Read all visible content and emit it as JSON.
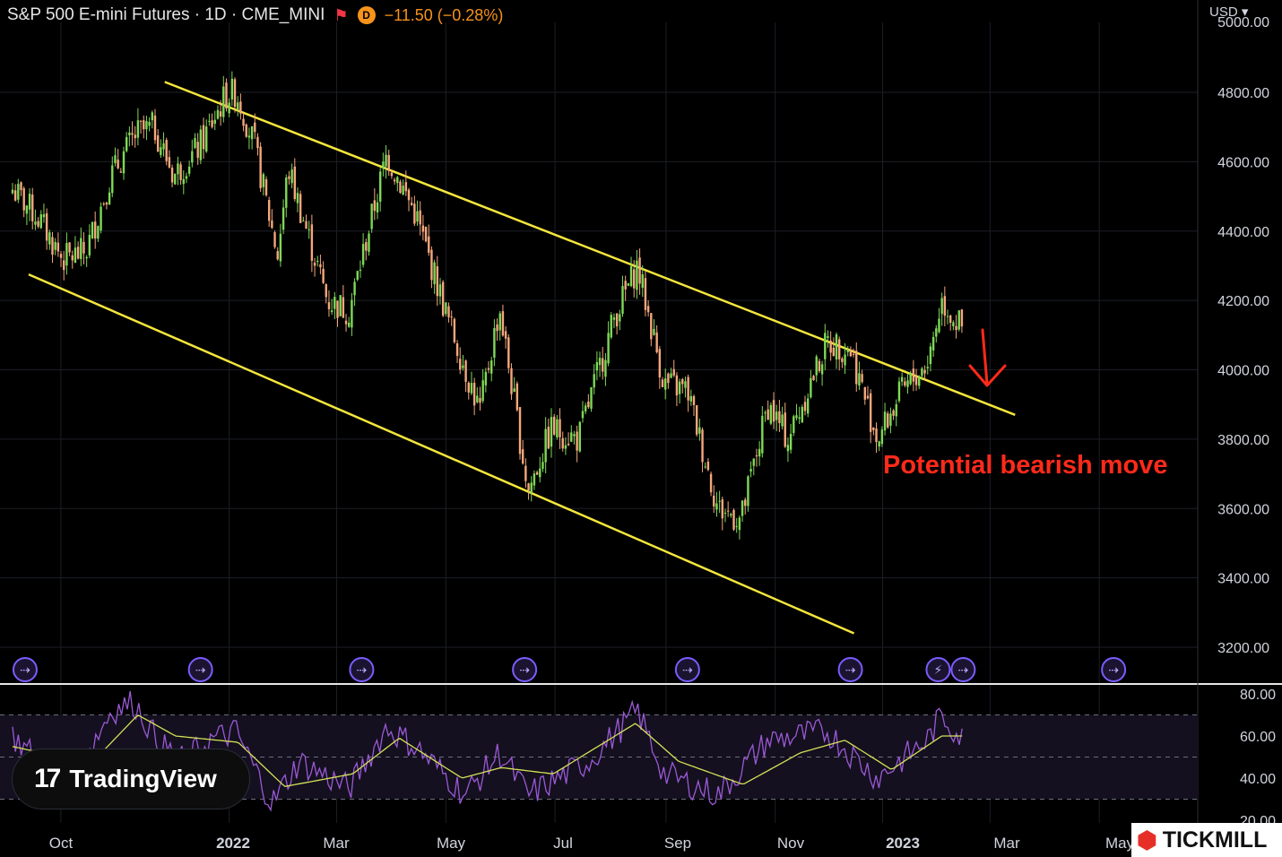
{
  "header": {
    "title": "S&P 500 E-mini Futures · 1D · CME_MINI",
    "flag_icon": "flag-icon",
    "badge_label": "D",
    "change": "−11.50 (−0.28%)",
    "currency": "USD"
  },
  "annotation": "Potential bearish move",
  "branding": {
    "tradingview": "TradingView",
    "tickmill": "TICKMILL"
  },
  "colors": {
    "up": "#7ed957",
    "down": "#f5a77d",
    "trendline": "#f5e63c",
    "rsi": "#9b59d6",
    "rsi_ma": "#d4e157",
    "arrow": "#ff2a1a",
    "event_icon": "#7b5cff"
  },
  "chart_data": {
    "type": "candlestick",
    "title": "S&P 500 E-mini Futures · 1D · CME_MINI",
    "price_axis": {
      "ticks": [
        3200,
        3400,
        3600,
        3800,
        4000,
        4200,
        4400,
        4600,
        4800
      ],
      "tick_labels": [
        "3200.00",
        "3400.00",
        "3600.00",
        "3800.00",
        "4000.00",
        "4200.00",
        "4400.00",
        "4600.00",
        "4800.00"
      ],
      "range": [
        3150,
        5000
      ]
    },
    "time_axis": {
      "labels": [
        "Oct",
        "2022",
        "Mar",
        "May",
        "Jul",
        "Sep",
        "Nov",
        "2023",
        "Mar",
        "May"
      ],
      "bold": [
        "2022",
        "2023"
      ]
    },
    "price_path": [
      {
        "date": "2021-09-01",
        "close": 4520
      },
      {
        "date": "2021-09-15",
        "close": 4440
      },
      {
        "date": "2021-09-29",
        "close": 4320
      },
      {
        "date": "2021-10-12",
        "close": 4340
      },
      {
        "date": "2021-10-26",
        "close": 4560
      },
      {
        "date": "2021-11-09",
        "close": 4680
      },
      {
        "date": "2021-11-19",
        "close": 4700
      },
      {
        "date": "2021-11-30",
        "close": 4560
      },
      {
        "date": "2021-12-14",
        "close": 4640
      },
      {
        "date": "2021-12-29",
        "close": 4790
      },
      {
        "date": "2022-01-04",
        "close": 4800
      },
      {
        "date": "2022-01-14",
        "close": 4650
      },
      {
        "date": "2022-01-27",
        "close": 4330
      },
      {
        "date": "2022-02-02",
        "close": 4580
      },
      {
        "date": "2022-02-24",
        "close": 4200
      },
      {
        "date": "2022-03-08",
        "close": 4170
      },
      {
        "date": "2022-03-29",
        "close": 4620
      },
      {
        "date": "2022-04-14",
        "close": 4450
      },
      {
        "date": "2022-05-02",
        "close": 4150
      },
      {
        "date": "2022-05-20",
        "close": 3880
      },
      {
        "date": "2022-05-31",
        "close": 4180
      },
      {
        "date": "2022-06-16",
        "close": 3650
      },
      {
        "date": "2022-06-29",
        "close": 3830
      },
      {
        "date": "2022-07-14",
        "close": 3800
      },
      {
        "date": "2022-08-03",
        "close": 4150
      },
      {
        "date": "2022-08-16",
        "close": 4300
      },
      {
        "date": "2022-08-31",
        "close": 3960
      },
      {
        "date": "2022-09-13",
        "close": 3940
      },
      {
        "date": "2022-09-30",
        "close": 3600
      },
      {
        "date": "2022-10-13",
        "close": 3570
      },
      {
        "date": "2022-10-28",
        "close": 3900
      },
      {
        "date": "2022-11-08",
        "close": 3800
      },
      {
        "date": "2022-11-30",
        "close": 4080
      },
      {
        "date": "2022-12-13",
        "close": 4060
      },
      {
        "date": "2022-12-28",
        "close": 3800
      },
      {
        "date": "2023-01-10",
        "close": 3930
      },
      {
        "date": "2023-01-25",
        "close": 4020
      },
      {
        "date": "2023-02-02",
        "close": 4200
      },
      {
        "date": "2023-02-14",
        "close": 4110
      }
    ],
    "channel": {
      "upper": [
        {
          "date": "2021-11-25",
          "price": 4830
        },
        {
          "date": "2023-03-15",
          "price": 3870
        }
      ],
      "lower": [
        {
          "date": "2021-09-10",
          "price": 4275
        },
        {
          "date": "2022-12-15",
          "price": 3240
        }
      ]
    },
    "rsi": {
      "axis_ticks": [
        20,
        40,
        60,
        80
      ],
      "tick_labels": [
        "20.00",
        "40.00",
        "60.00",
        "80.00"
      ],
      "levels": [
        30,
        50,
        70
      ],
      "path": [
        {
          "date": "2021-09-01",
          "value": 60
        },
        {
          "date": "2021-09-20",
          "value": 45
        },
        {
          "date": "2021-10-05",
          "value": 40
        },
        {
          "date": "2021-10-26",
          "value": 72
        },
        {
          "date": "2021-11-08",
          "value": 76
        },
        {
          "date": "2021-11-22",
          "value": 56
        },
        {
          "date": "2021-12-06",
          "value": 48
        },
        {
          "date": "2021-12-20",
          "value": 58
        },
        {
          "date": "2022-01-04",
          "value": 62
        },
        {
          "date": "2022-01-24",
          "value": 28
        },
        {
          "date": "2022-02-08",
          "value": 48
        },
        {
          "date": "2022-03-08",
          "value": 35
        },
        {
          "date": "2022-03-29",
          "value": 64
        },
        {
          "date": "2022-04-14",
          "value": 55
        },
        {
          "date": "2022-05-12",
          "value": 32
        },
        {
          "date": "2022-05-31",
          "value": 52
        },
        {
          "date": "2022-06-16",
          "value": 32
        },
        {
          "date": "2022-07-20",
          "value": 48
        },
        {
          "date": "2022-08-16",
          "value": 72
        },
        {
          "date": "2022-08-31",
          "value": 42
        },
        {
          "date": "2022-09-30",
          "value": 32
        },
        {
          "date": "2022-10-28",
          "value": 58
        },
        {
          "date": "2022-11-30",
          "value": 62
        },
        {
          "date": "2022-12-28",
          "value": 40
        },
        {
          "date": "2023-01-25",
          "value": 58
        },
        {
          "date": "2023-02-02",
          "value": 70
        },
        {
          "date": "2023-02-14",
          "value": 58
        }
      ],
      "ma_path": [
        {
          "date": "2021-09-01",
          "value": 55
        },
        {
          "date": "2021-10-15",
          "value": 47
        },
        {
          "date": "2021-11-10",
          "value": 70
        },
        {
          "date": "2021-12-01",
          "value": 60
        },
        {
          "date": "2022-01-05",
          "value": 57
        },
        {
          "date": "2022-01-31",
          "value": 36
        },
        {
          "date": "2022-03-10",
          "value": 42
        },
        {
          "date": "2022-04-05",
          "value": 59
        },
        {
          "date": "2022-05-10",
          "value": 40
        },
        {
          "date": "2022-06-01",
          "value": 45
        },
        {
          "date": "2022-06-30",
          "value": 42
        },
        {
          "date": "2022-08-15",
          "value": 66
        },
        {
          "date": "2022-09-08",
          "value": 48
        },
        {
          "date": "2022-10-14",
          "value": 37
        },
        {
          "date": "2022-11-15",
          "value": 52
        },
        {
          "date": "2022-12-10",
          "value": 58
        },
        {
          "date": "2023-01-05",
          "value": 44
        },
        {
          "date": "2023-02-02",
          "value": 60
        },
        {
          "date": "2023-02-14",
          "value": 60
        }
      ]
    },
    "event_icons": [
      "2021-09-08",
      "2021-12-15",
      "2022-03-15",
      "2022-06-14",
      "2022-09-13",
      "2022-12-13",
      "2023-01-31",
      "2023-02-14",
      "2023-05-09"
    ]
  }
}
